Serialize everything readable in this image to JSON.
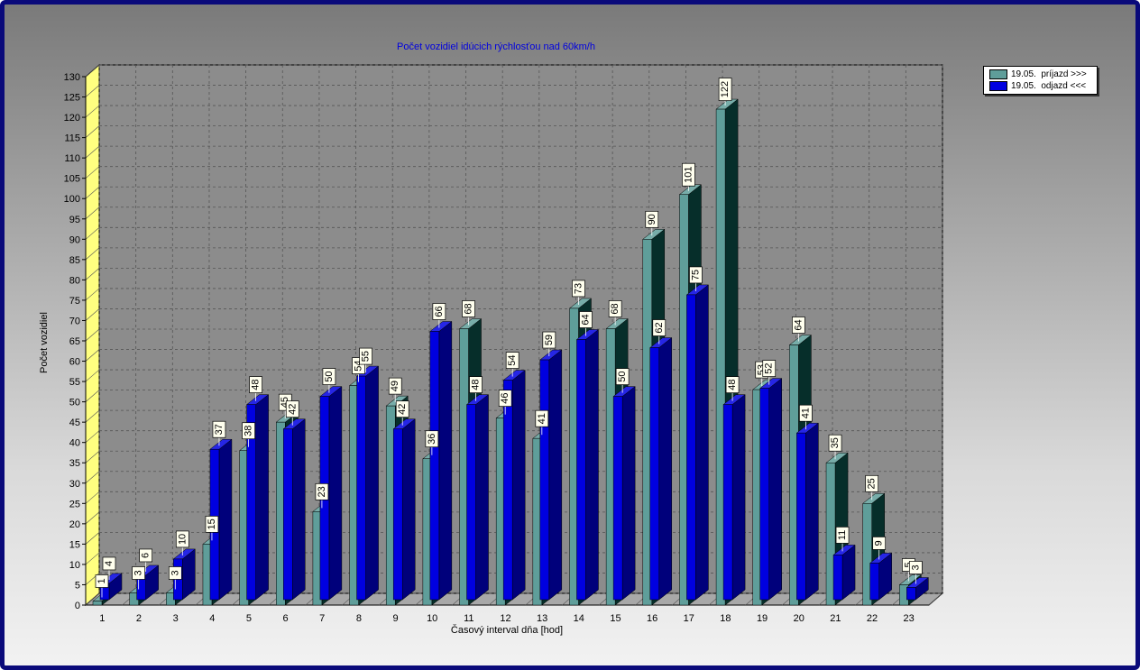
{
  "chart_data": {
    "type": "bar",
    "title": "Počet vozidiel idúcich rýchlosťou nad 60km/h",
    "xlabel": "Časový interval dňa [hod]",
    "ylabel": "Počet vozidiel",
    "ylim": [
      0,
      130
    ],
    "ytick_step": 5,
    "grid": true,
    "legend_position": "top-right",
    "categories": [
      "1",
      "2",
      "3",
      "4",
      "5",
      "6",
      "7",
      "8",
      "9",
      "10",
      "11",
      "12",
      "13",
      "14",
      "15",
      "16",
      "17",
      "18",
      "19",
      "20",
      "21",
      "22",
      "23"
    ],
    "series": [
      {
        "name": "19.05.  príjazd >>>",
        "color": "#5f9e9a",
        "values": [
          1,
          3,
          3,
          15,
          38,
          45,
          23,
          54,
          49,
          36,
          68,
          46,
          41,
          73,
          68,
          90,
          101,
          122,
          53,
          64,
          35,
          25,
          5
        ]
      },
      {
        "name": "19.05.  odjazd <<<",
        "color": "#0000e0",
        "values": [
          4,
          6,
          10,
          37,
          48,
          42,
          50,
          55,
          42,
          66,
          48,
          54,
          59,
          64,
          50,
          62,
          75,
          48,
          52,
          41,
          11,
          9,
          3
        ]
      }
    ]
  }
}
